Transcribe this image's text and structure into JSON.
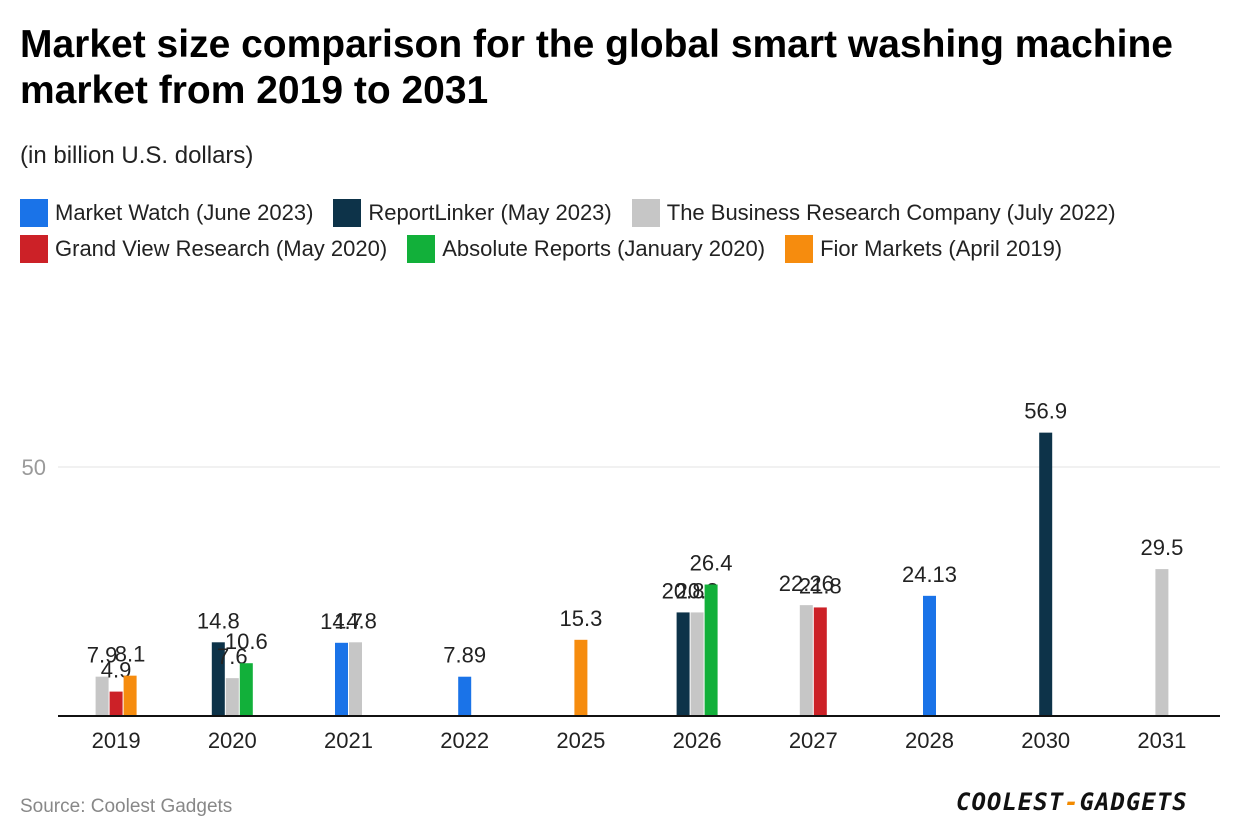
{
  "chart_data": {
    "type": "bar",
    "title": "Market size comparison for the global smart washing machine market from 2019 to 2031",
    "subtitle": "(in billion U.S. dollars)",
    "categories": [
      "2019",
      "2020",
      "2021",
      "2022",
      "2025",
      "2026",
      "2027",
      "2028",
      "2030",
      "2031"
    ],
    "y_ticks": [
      50
    ],
    "ylim": [
      0,
      60
    ],
    "grid": true,
    "series": [
      {
        "name": "Market Watch (June 2023)",
        "color": "#1a73e8",
        "values": [
          null,
          null,
          14.7,
          7.89,
          null,
          null,
          null,
          24.13,
          null,
          null
        ],
        "labels": [
          null,
          null,
          "14.7",
          "7.89",
          null,
          null,
          null,
          "24.13",
          null,
          null
        ]
      },
      {
        "name": "ReportLinker (May 2023)",
        "color": "#0d3349",
        "values": [
          null,
          14.8,
          null,
          null,
          null,
          20.8,
          null,
          null,
          56.9,
          null
        ],
        "labels": [
          null,
          "14.8",
          null,
          null,
          null,
          "20.8",
          null,
          null,
          "56.9",
          null
        ]
      },
      {
        "name": "The Business Research Company (July 2022)",
        "color": "#c6c6c6",
        "values": [
          7.9,
          7.6,
          14.8,
          null,
          null,
          20.8,
          22.26,
          null,
          null,
          29.5
        ],
        "labels": [
          "7.9",
          "7.6",
          "14.8",
          null,
          null,
          "20.8",
          "22.26",
          null,
          null,
          "29.5"
        ]
      },
      {
        "name": "Grand View Research (May 2020)",
        "color": "#cc2127",
        "values": [
          4.9,
          null,
          null,
          null,
          null,
          null,
          21.8,
          null,
          null,
          null
        ],
        "labels": [
          "4.9",
          null,
          null,
          null,
          null,
          null,
          "21.8",
          null,
          null,
          null
        ]
      },
      {
        "name": "Absolute Reports (January 2020)",
        "color": "#12b03a",
        "values": [
          null,
          10.6,
          null,
          null,
          null,
          26.4,
          null,
          null,
          null,
          null
        ],
        "labels": [
          null,
          "10.6",
          null,
          null,
          null,
          "26.4",
          null,
          null,
          null,
          null
        ]
      },
      {
        "name": "Fior Markets (April 2019)",
        "color": "#f68c0e",
        "values": [
          8.1,
          null,
          null,
          null,
          15.3,
          null,
          null,
          null,
          null,
          null
        ],
        "labels": [
          "8.1",
          null,
          null,
          null,
          "15.3",
          null,
          null,
          null,
          null,
          null
        ]
      }
    ],
    "legend_rows": [
      [
        0,
        1,
        2
      ],
      [
        3,
        4,
        5
      ]
    ]
  },
  "footer": {
    "source": "Source: Coolest Gadgets",
    "logo_left": "COOLEST",
    "logo_dash": "-",
    "logo_right": "GADGETS"
  }
}
